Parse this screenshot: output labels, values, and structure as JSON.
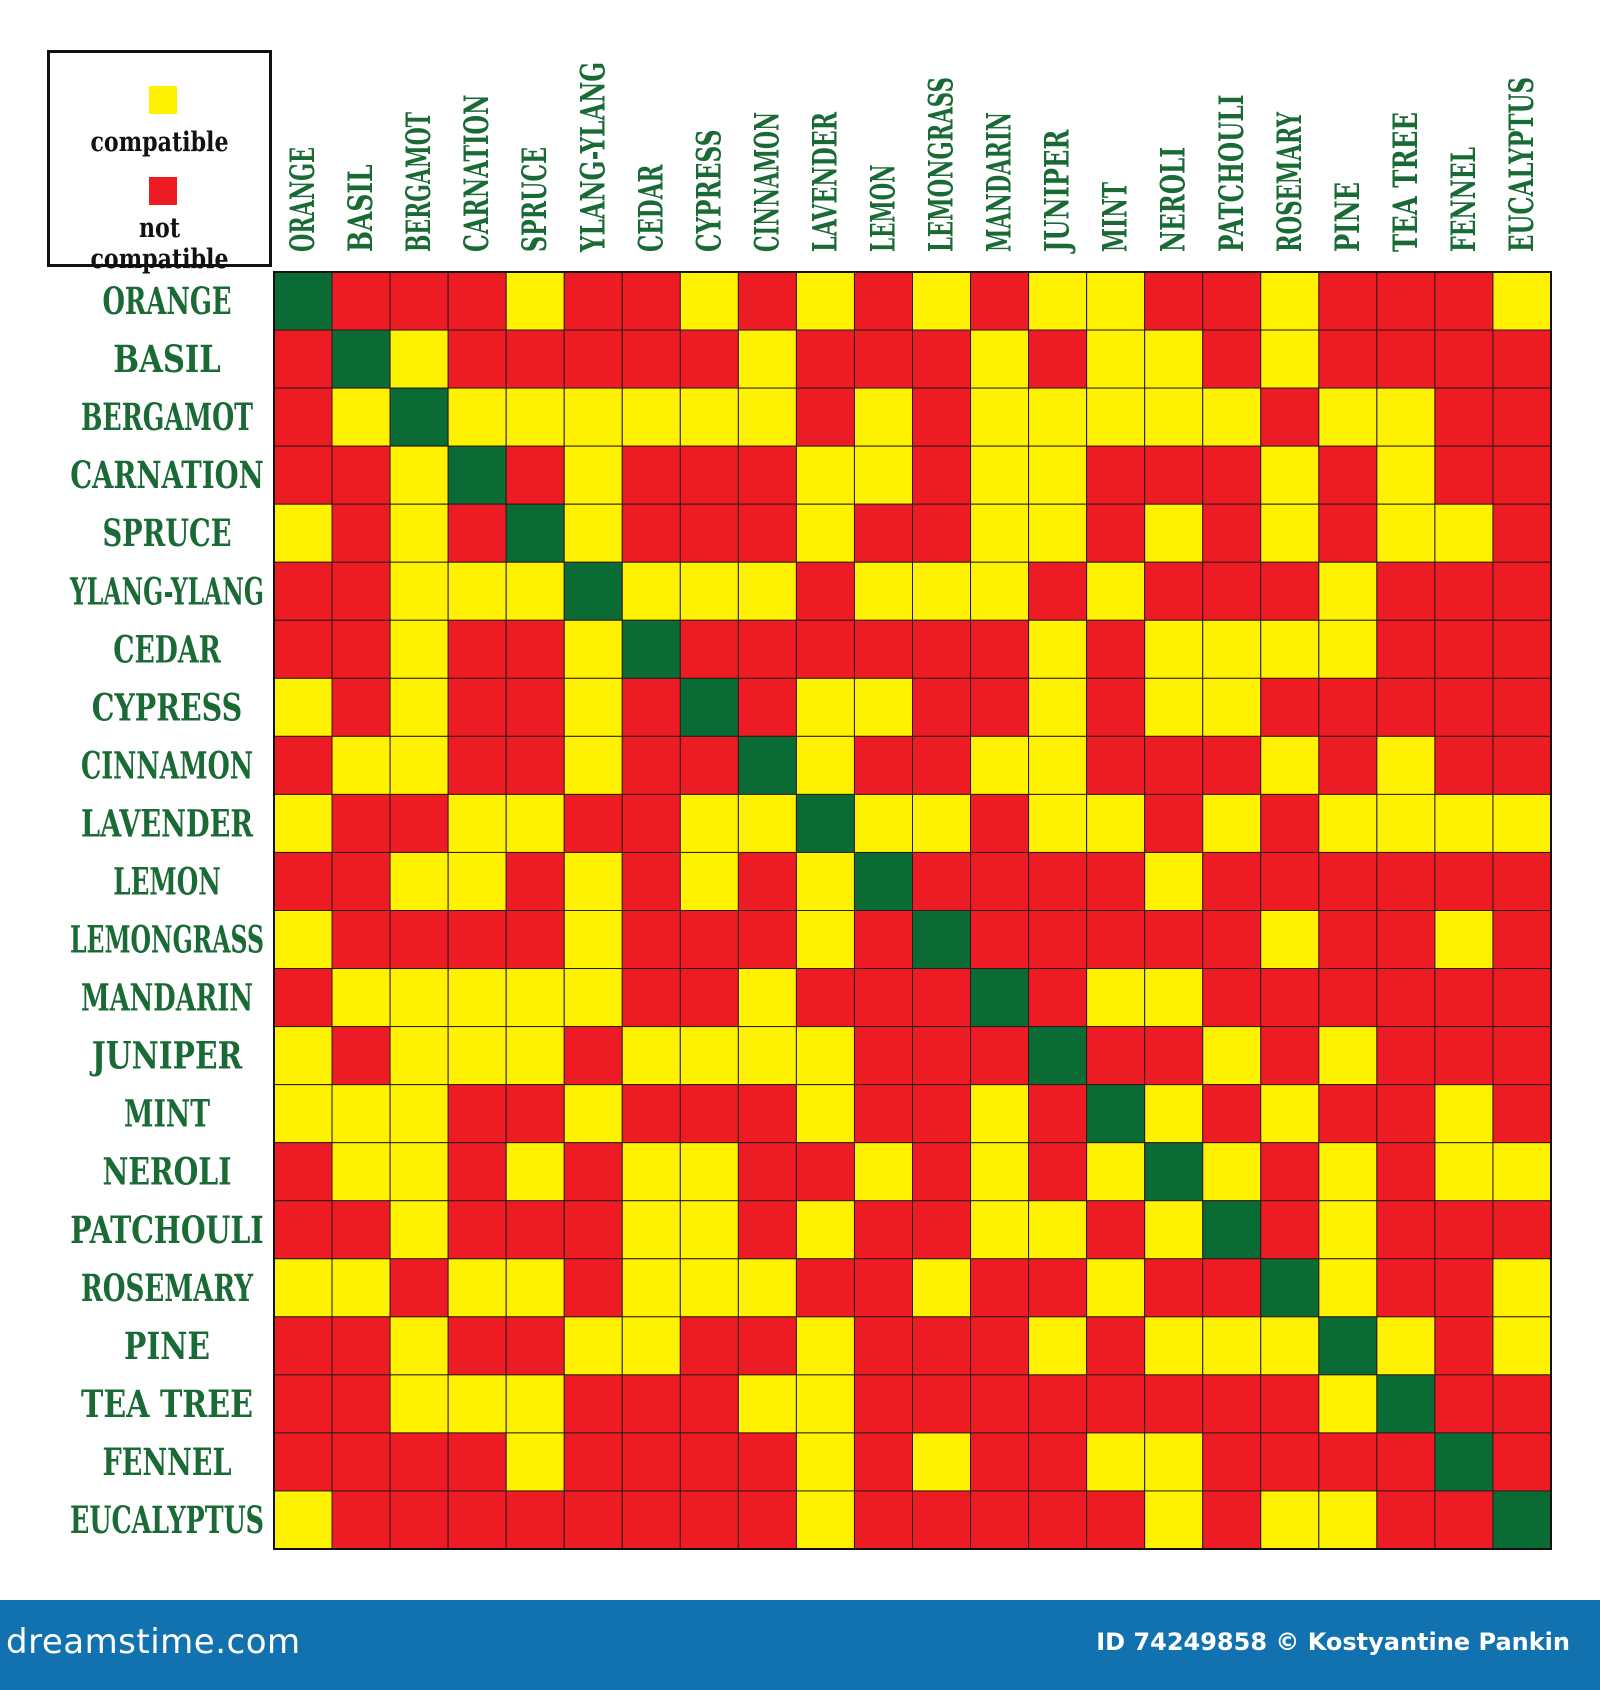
{
  "legend": {
    "compatible_label": "compatible",
    "not_compatible_label": "not compatible"
  },
  "footer": {
    "brand": "dreamstime.com",
    "credit": "ID 74249858 © Kostyantine Pankin"
  },
  "colors": {
    "compatible": "#fff200",
    "not_compatible": "#ed1c24",
    "self": "#0b6b35",
    "label": "#1a6a36",
    "footer": "#1272b0"
  },
  "chart_data": {
    "type": "heatmap",
    "title": "",
    "xlabel": "",
    "ylabel": "",
    "rows": [
      "ORANGE",
      "BASIL",
      "BERGAMOT",
      "CARNATION",
      "SPRUCE",
      "YLANG-YLANG",
      "CEDAR",
      "CYPRESS",
      "CINNAMON",
      "LAVENDER",
      "LEMON",
      "LEMONGRASS",
      "MANDARIN",
      "JUNIPER",
      "MINT",
      "NEROLI",
      "PATCHOULI",
      "ROSEMARY",
      "PINE",
      "TEA TREE",
      "FENNEL",
      "EUCALYPTUS"
    ],
    "columns": [
      "ORANGE",
      "BASIL",
      "BERGAMOT",
      "CARNATION",
      "SPRUCE",
      "YLANG-YLANG",
      "CEDAR",
      "CYPRESS",
      "CINNAMON",
      "LAVENDER",
      "LEMON",
      "LEMONGRASS",
      "MANDARIN",
      "JUNIPER",
      "MINT",
      "NEROLI",
      "PATCHOULI",
      "ROSEMARY",
      "PINE",
      "TEA TREE",
      "FENNEL",
      "EUCALYPTUS"
    ],
    "value_key": {
      "C": "compatible",
      "N": "not compatible",
      "S": "same oil"
    },
    "values": [
      [
        "S",
        "N",
        "N",
        "N",
        "C",
        "N",
        "N",
        "C",
        "N",
        "C",
        "N",
        "C",
        "N",
        "C",
        "C",
        "N",
        "N",
        "C",
        "N",
        "N",
        "N",
        "C"
      ],
      [
        "N",
        "S",
        "C",
        "N",
        "N",
        "N",
        "N",
        "N",
        "C",
        "N",
        "N",
        "N",
        "C",
        "N",
        "C",
        "C",
        "N",
        "C",
        "N",
        "N",
        "N",
        "N"
      ],
      [
        "N",
        "C",
        "S",
        "C",
        "C",
        "C",
        "C",
        "C",
        "C",
        "N",
        "C",
        "N",
        "C",
        "C",
        "C",
        "C",
        "C",
        "N",
        "C",
        "C",
        "N",
        "N"
      ],
      [
        "N",
        "N",
        "C",
        "S",
        "N",
        "C",
        "N",
        "N",
        "N",
        "C",
        "C",
        "N",
        "C",
        "C",
        "N",
        "N",
        "N",
        "C",
        "N",
        "C",
        "N",
        "N"
      ],
      [
        "C",
        "N",
        "C",
        "N",
        "S",
        "C",
        "N",
        "N",
        "N",
        "C",
        "N",
        "N",
        "C",
        "C",
        "N",
        "C",
        "N",
        "C",
        "N",
        "C",
        "C",
        "N"
      ],
      [
        "N",
        "N",
        "C",
        "C",
        "C",
        "S",
        "C",
        "C",
        "C",
        "N",
        "C",
        "C",
        "C",
        "N",
        "C",
        "N",
        "N",
        "N",
        "C",
        "N",
        "N",
        "N"
      ],
      [
        "N",
        "N",
        "C",
        "N",
        "N",
        "C",
        "S",
        "N",
        "N",
        "N",
        "N",
        "N",
        "N",
        "C",
        "N",
        "C",
        "C",
        "C",
        "C",
        "N",
        "N",
        "N"
      ],
      [
        "C",
        "N",
        "C",
        "N",
        "N",
        "C",
        "N",
        "S",
        "N",
        "C",
        "C",
        "N",
        "N",
        "C",
        "N",
        "C",
        "C",
        "N",
        "N",
        "N",
        "N",
        "N"
      ],
      [
        "N",
        "C",
        "C",
        "N",
        "N",
        "C",
        "N",
        "N",
        "S",
        "C",
        "N",
        "N",
        "C",
        "C",
        "N",
        "N",
        "N",
        "C",
        "N",
        "C",
        "N",
        "N"
      ],
      [
        "C",
        "N",
        "N",
        "C",
        "C",
        "N",
        "N",
        "C",
        "C",
        "S",
        "C",
        "C",
        "N",
        "C",
        "C",
        "N",
        "C",
        "N",
        "C",
        "C",
        "C",
        "C"
      ],
      [
        "N",
        "N",
        "C",
        "C",
        "N",
        "C",
        "N",
        "C",
        "N",
        "C",
        "S",
        "N",
        "N",
        "N",
        "N",
        "C",
        "N",
        "N",
        "N",
        "N",
        "N",
        "N"
      ],
      [
        "C",
        "N",
        "N",
        "N",
        "N",
        "C",
        "N",
        "N",
        "N",
        "C",
        "N",
        "S",
        "N",
        "N",
        "N",
        "N",
        "N",
        "C",
        "N",
        "N",
        "C",
        "N"
      ],
      [
        "N",
        "C",
        "C",
        "C",
        "C",
        "C",
        "N",
        "N",
        "C",
        "N",
        "N",
        "N",
        "S",
        "N",
        "C",
        "C",
        "N",
        "N",
        "N",
        "N",
        "N",
        "N"
      ],
      [
        "C",
        "N",
        "C",
        "C",
        "C",
        "N",
        "C",
        "C",
        "C",
        "C",
        "N",
        "N",
        "N",
        "S",
        "N",
        "N",
        "C",
        "N",
        "C",
        "N",
        "N",
        "N"
      ],
      [
        "C",
        "C",
        "C",
        "N",
        "N",
        "C",
        "N",
        "N",
        "N",
        "C",
        "N",
        "N",
        "C",
        "N",
        "S",
        "C",
        "N",
        "C",
        "N",
        "N",
        "C",
        "N"
      ],
      [
        "N",
        "C",
        "C",
        "N",
        "C",
        "N",
        "C",
        "C",
        "N",
        "N",
        "C",
        "N",
        "C",
        "N",
        "C",
        "S",
        "C",
        "N",
        "C",
        "N",
        "C",
        "C"
      ],
      [
        "N",
        "N",
        "C",
        "N",
        "N",
        "N",
        "C",
        "C",
        "N",
        "C",
        "N",
        "N",
        "C",
        "C",
        "N",
        "C",
        "S",
        "N",
        "C",
        "N",
        "N",
        "N"
      ],
      [
        "C",
        "C",
        "N",
        "C",
        "C",
        "N",
        "C",
        "C",
        "C",
        "N",
        "N",
        "C",
        "N",
        "N",
        "C",
        "N",
        "N",
        "S",
        "C",
        "N",
        "N",
        "C"
      ],
      [
        "N",
        "N",
        "C",
        "N",
        "N",
        "C",
        "C",
        "N",
        "N",
        "C",
        "N",
        "N",
        "N",
        "C",
        "N",
        "C",
        "C",
        "C",
        "S",
        "C",
        "N",
        "C"
      ],
      [
        "N",
        "N",
        "C",
        "C",
        "C",
        "N",
        "N",
        "N",
        "C",
        "C",
        "N",
        "N",
        "N",
        "N",
        "N",
        "N",
        "N",
        "N",
        "C",
        "S",
        "N",
        "N"
      ],
      [
        "N",
        "N",
        "N",
        "N",
        "C",
        "N",
        "N",
        "N",
        "N",
        "C",
        "N",
        "C",
        "N",
        "N",
        "C",
        "C",
        "N",
        "N",
        "N",
        "N",
        "S",
        "N"
      ],
      [
        "C",
        "N",
        "N",
        "N",
        "N",
        "N",
        "N",
        "N",
        "N",
        "C",
        "N",
        "N",
        "N",
        "N",
        "N",
        "C",
        "N",
        "C",
        "C",
        "N",
        "N",
        "S"
      ]
    ]
  }
}
